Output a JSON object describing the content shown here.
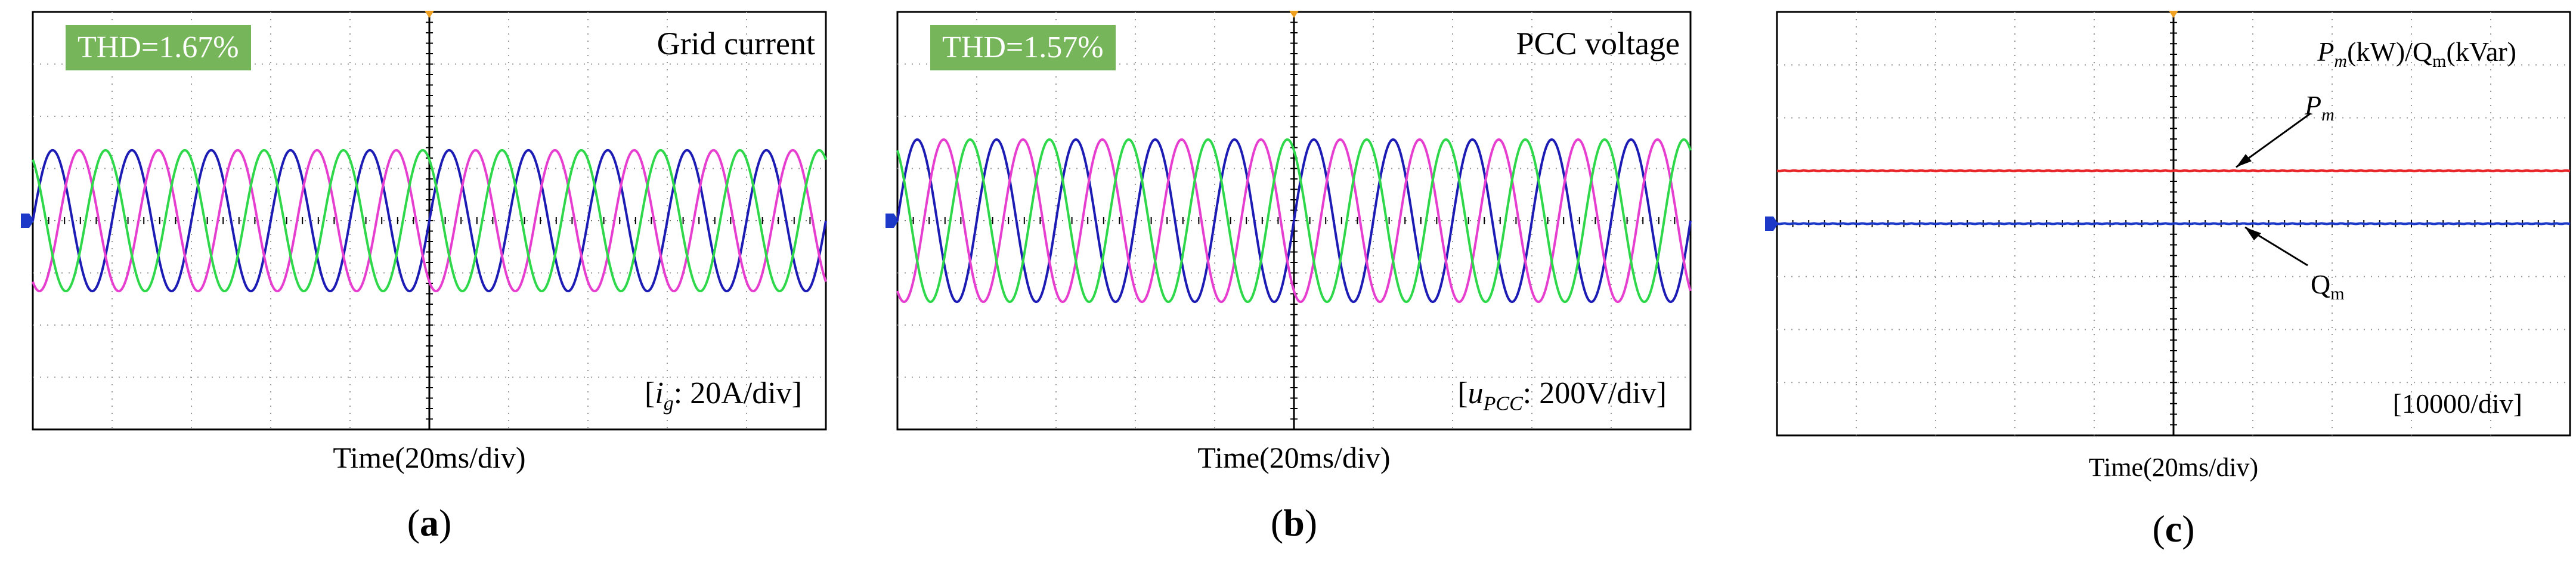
{
  "chart_data": [
    {
      "type": "line",
      "panel": "(a)",
      "caption_letter": "a",
      "title": "Grid current",
      "thd": "THD=1.67%",
      "scale_label": "[ig: 20A/div]",
      "scale_symbol": "i",
      "scale_subscript": "g",
      "scale_text": ": 20A/div]",
      "xlabel": "Time(20ms/div)",
      "x_unit": "ms",
      "x_range": [
        0,
        200
      ],
      "y_unit": "A",
      "ylim": [
        -80,
        80
      ],
      "frequency_hz": 50,
      "series": [
        {
          "phase": "a",
          "color": "#1c1cb4",
          "amplitude": 27,
          "offset": 0,
          "phase_deg": 0
        },
        {
          "phase": "b",
          "color": "#e63fd0",
          "amplitude": 27,
          "offset": 0,
          "phase_deg": -120
        },
        {
          "phase": "c",
          "color": "#2ed84a",
          "amplitude": 27,
          "offset": 0,
          "phase_deg": 120
        }
      ],
      "grid": true
    },
    {
      "type": "line",
      "panel": "(b)",
      "caption_letter": "b",
      "title": "PCC voltage",
      "thd": "THD=1.57%",
      "scale_label": "[uPCC: 200V/div]",
      "scale_symbol": "u",
      "scale_subscript": "PCC",
      "scale_text": ": 200V/div]",
      "xlabel": "Time(20ms/div)",
      "x_unit": "ms",
      "x_range": [
        0,
        200
      ],
      "y_unit": "V",
      "ylim": [
        -800,
        800
      ],
      "frequency_hz": 50,
      "series": [
        {
          "phase": "a",
          "color": "#1c1cb4",
          "amplitude": 311,
          "offset": 0,
          "phase_deg": 0
        },
        {
          "phase": "b",
          "color": "#e63fd0",
          "amplitude": 311,
          "offset": 0,
          "phase_deg": -120
        },
        {
          "phase": "c",
          "color": "#2ed84a",
          "amplitude": 311,
          "offset": 0,
          "phase_deg": 120
        }
      ],
      "grid": true
    },
    {
      "type": "line",
      "panel": "(c)",
      "caption_letter": "c",
      "title": "Pm(kW)/Qm(kVar)",
      "scale_label": "[10000/div]",
      "xlabel": "Time(20ms/div)",
      "x_unit": "ms",
      "x_range": [
        0,
        200
      ],
      "ylim": [
        -40000,
        40000
      ],
      "series": [
        {
          "name": "Pm",
          "color": "#e8262a",
          "value": 10000
        },
        {
          "name": "Qm",
          "color": "#1c39c8",
          "value": 0
        }
      ],
      "grid": true
    }
  ]
}
